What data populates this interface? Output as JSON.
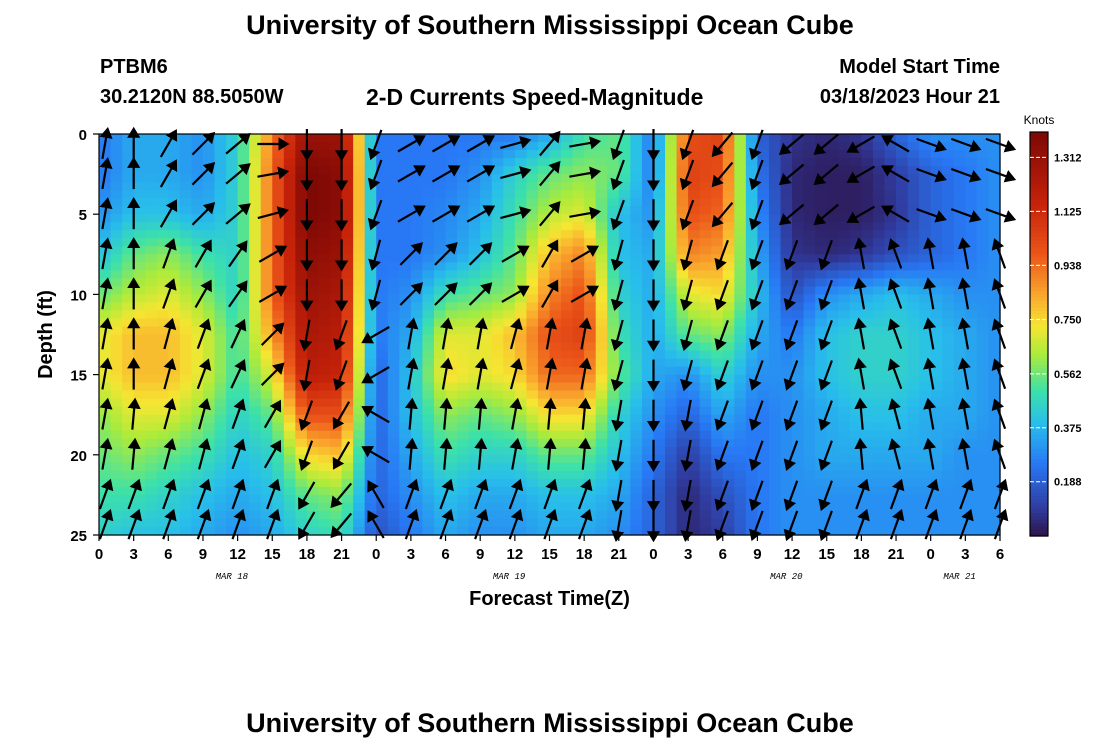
{
  "header": {
    "title": "University of Southern Mississippi Ocean Cube",
    "station": "PTBM6",
    "coordinates": "30.2120N  88.5050W",
    "subtitle": "2-D Currents Speed-Magnitude",
    "model_start_label": "Model Start Time",
    "model_start_value": "03/18/2023 Hour 21"
  },
  "footer": {
    "title": "University of Southern Mississippi Ocean Cube"
  },
  "chart_data": {
    "type": "heatmap",
    "title": "2-D Currents Speed-Magnitude",
    "xlabel": "Forecast Time(Z)",
    "ylabel": "Depth (ft)",
    "x_range_hours": [
      0,
      78
    ],
    "ylim": [
      0,
      25
    ],
    "y_ticks": [
      "0",
      "5",
      "10",
      "15",
      "20",
      "25"
    ],
    "x_ticks": [
      "0",
      "3",
      "6",
      "9",
      "12",
      "15",
      "18",
      "21",
      "0",
      "3",
      "6",
      "9",
      "12",
      "15",
      "18",
      "21",
      "0",
      "3",
      "6",
      "9",
      "12",
      "15",
      "18",
      "21",
      "0",
      "3",
      "6"
    ],
    "date_labels": [
      {
        "label": "MAR 18",
        "hour": 11.5
      },
      {
        "label": "MAR 19",
        "hour": 35.5
      },
      {
        "label": "MAR 20",
        "hour": 59.5
      },
      {
        "label": "MAR 21",
        "hour": 74.5
      }
    ],
    "colorbar": {
      "units": "Knots",
      "min": 0.0,
      "max": 1.4,
      "ticks": [
        "1.312",
        "1.125",
        "0.938",
        "0.750",
        "0.562",
        "0.375",
        "0.188"
      ],
      "tick_values": [
        1.312,
        1.125,
        0.938,
        0.75,
        0.562,
        0.375,
        0.188
      ]
    },
    "speed_grid": {
      "hours": [
        0,
        3,
        6,
        9,
        12,
        15,
        18,
        21,
        24,
        27,
        30,
        33,
        36,
        39,
        42,
        45,
        48,
        51,
        54,
        57,
        60,
        63,
        66,
        69,
        72,
        75,
        78
      ],
      "depths_ft": [
        0,
        2.5,
        5,
        7.5,
        10,
        12.5,
        15,
        17.5,
        20,
        22.5,
        25
      ],
      "values": [
        [
          0.25,
          0.35,
          0.35,
          0.3,
          0.45,
          0.9,
          1.3,
          1.3,
          0.25,
          0.25,
          0.25,
          0.25,
          0.25,
          0.35,
          0.5,
          0.55,
          0.25,
          1.0,
          1.05,
          0.2,
          0.08,
          0.05,
          0.08,
          0.2,
          0.3,
          0.3,
          0.3
        ],
        [
          0.25,
          0.35,
          0.35,
          0.3,
          0.45,
          0.95,
          1.4,
          1.35,
          0.25,
          0.25,
          0.25,
          0.3,
          0.45,
          0.55,
          0.6,
          0.55,
          0.25,
          1.05,
          1.0,
          0.25,
          0.05,
          0.03,
          0.03,
          0.1,
          0.2,
          0.25,
          0.3
        ],
        [
          0.3,
          0.4,
          0.4,
          0.35,
          0.45,
          0.95,
          1.4,
          1.35,
          0.25,
          0.25,
          0.28,
          0.35,
          0.5,
          0.65,
          0.7,
          0.4,
          0.3,
          1.0,
          0.95,
          0.3,
          0.05,
          0.03,
          0.03,
          0.08,
          0.2,
          0.25,
          0.3
        ],
        [
          0.4,
          0.55,
          0.6,
          0.5,
          0.45,
          0.95,
          1.35,
          1.3,
          0.25,
          0.25,
          0.3,
          0.4,
          0.55,
          0.8,
          0.9,
          0.4,
          0.35,
          0.9,
          0.85,
          0.35,
          0.08,
          0.05,
          0.08,
          0.15,
          0.2,
          0.25,
          0.3
        ],
        [
          0.55,
          0.65,
          0.7,
          0.6,
          0.45,
          0.95,
          1.3,
          1.25,
          0.25,
          0.3,
          0.5,
          0.55,
          0.6,
          0.9,
          1.0,
          0.45,
          0.35,
          0.7,
          0.75,
          0.4,
          0.15,
          0.3,
          0.35,
          0.4,
          0.35,
          0.3,
          0.3
        ],
        [
          0.7,
          0.8,
          0.8,
          0.7,
          0.5,
          0.85,
          1.25,
          1.2,
          0.25,
          0.35,
          0.7,
          0.7,
          0.8,
          1.0,
          1.05,
          0.5,
          0.35,
          0.55,
          0.6,
          0.35,
          0.25,
          0.4,
          0.45,
          0.45,
          0.4,
          0.35,
          0.3
        ],
        [
          0.7,
          0.8,
          0.8,
          0.7,
          0.5,
          0.7,
          1.2,
          1.15,
          0.2,
          0.4,
          0.75,
          0.7,
          0.75,
          0.95,
          0.95,
          0.55,
          0.35,
          0.3,
          0.45,
          0.3,
          0.3,
          0.4,
          0.45,
          0.45,
          0.4,
          0.35,
          0.3
        ],
        [
          0.6,
          0.7,
          0.7,
          0.6,
          0.45,
          0.55,
          1.0,
          1.0,
          0.2,
          0.4,
          0.6,
          0.55,
          0.6,
          0.75,
          0.75,
          0.45,
          0.3,
          0.2,
          0.35,
          0.25,
          0.3,
          0.35,
          0.4,
          0.4,
          0.35,
          0.35,
          0.3
        ],
        [
          0.55,
          0.6,
          0.55,
          0.5,
          0.4,
          0.45,
          0.75,
          0.8,
          0.2,
          0.35,
          0.5,
          0.45,
          0.45,
          0.55,
          0.55,
          0.4,
          0.25,
          0.1,
          0.25,
          0.25,
          0.3,
          0.35,
          0.35,
          0.35,
          0.35,
          0.3,
          0.3
        ],
        [
          0.5,
          0.5,
          0.45,
          0.4,
          0.35,
          0.4,
          0.55,
          0.6,
          0.2,
          0.3,
          0.4,
          0.35,
          0.35,
          0.4,
          0.4,
          0.35,
          0.2,
          0.05,
          0.15,
          0.25,
          0.3,
          0.3,
          0.3,
          0.3,
          0.3,
          0.3,
          0.3
        ],
        [
          0.45,
          0.4,
          0.4,
          0.35,
          0.3,
          0.35,
          0.45,
          0.5,
          0.15,
          0.25,
          0.35,
          0.3,
          0.3,
          0.35,
          0.35,
          0.3,
          0.2,
          0.05,
          0.1,
          0.25,
          0.3,
          0.3,
          0.3,
          0.3,
          0.3,
          0.3,
          0.3
        ]
      ]
    },
    "vector_directions_deg": {
      "note": "arrow direction as compass bearing the current flows toward (0 = up / north)",
      "values": [
        [
          10,
          0,
          30,
          45,
          50,
          90,
          180,
          180,
          200,
          60,
          60,
          60,
          75,
          40,
          80,
          200,
          180,
          200,
          220,
          200,
          230,
          230,
          240,
          300,
          110,
          110,
          110
        ],
        [
          10,
          0,
          30,
          45,
          50,
          80,
          180,
          180,
          200,
          60,
          60,
          60,
          75,
          40,
          80,
          200,
          180,
          200,
          220,
          200,
          230,
          230,
          240,
          300,
          110,
          110,
          110
        ],
        [
          10,
          0,
          30,
          45,
          50,
          75,
          180,
          180,
          200,
          60,
          60,
          60,
          75,
          40,
          80,
          200,
          180,
          200,
          220,
          200,
          230,
          230,
          240,
          300,
          110,
          110,
          110
        ],
        [
          10,
          0,
          20,
          30,
          35,
          60,
          180,
          180,
          195,
          45,
          45,
          45,
          60,
          30,
          60,
          195,
          180,
          195,
          200,
          200,
          200,
          200,
          350,
          340,
          350,
          350,
          340
        ],
        [
          10,
          0,
          20,
          30,
          35,
          60,
          180,
          180,
          195,
          45,
          45,
          45,
          60,
          30,
          60,
          195,
          180,
          195,
          200,
          200,
          200,
          200,
          350,
          340,
          350,
          350,
          340
        ],
        [
          10,
          0,
          15,
          20,
          25,
          45,
          190,
          200,
          240,
          10,
          10,
          10,
          15,
          10,
          10,
          195,
          180,
          195,
          200,
          200,
          200,
          200,
          350,
          340,
          350,
          350,
          340
        ],
        [
          10,
          0,
          15,
          20,
          25,
          45,
          190,
          200,
          240,
          10,
          10,
          10,
          15,
          10,
          10,
          195,
          180,
          195,
          200,
          200,
          200,
          200,
          350,
          340,
          350,
          350,
          340
        ],
        [
          10,
          5,
          15,
          15,
          20,
          30,
          200,
          210,
          300,
          5,
          5,
          5,
          10,
          5,
          5,
          190,
          180,
          190,
          200,
          200,
          200,
          200,
          355,
          345,
          350,
          350,
          340
        ],
        [
          10,
          5,
          15,
          15,
          20,
          30,
          200,
          210,
          300,
          5,
          5,
          5,
          10,
          5,
          5,
          190,
          180,
          190,
          200,
          200,
          200,
          200,
          355,
          345,
          350,
          350,
          340
        ],
        [
          20,
          20,
          20,
          20,
          20,
          20,
          210,
          220,
          330,
          20,
          20,
          20,
          20,
          20,
          20,
          190,
          180,
          190,
          200,
          200,
          200,
          200,
          20,
          20,
          20,
          20,
          20
        ],
        [
          20,
          20,
          20,
          20,
          20,
          20,
          210,
          220,
          330,
          20,
          20,
          20,
          20,
          20,
          20,
          190,
          180,
          190,
          200,
          200,
          200,
          200,
          20,
          20,
          20,
          20,
          20
        ]
      ]
    }
  }
}
